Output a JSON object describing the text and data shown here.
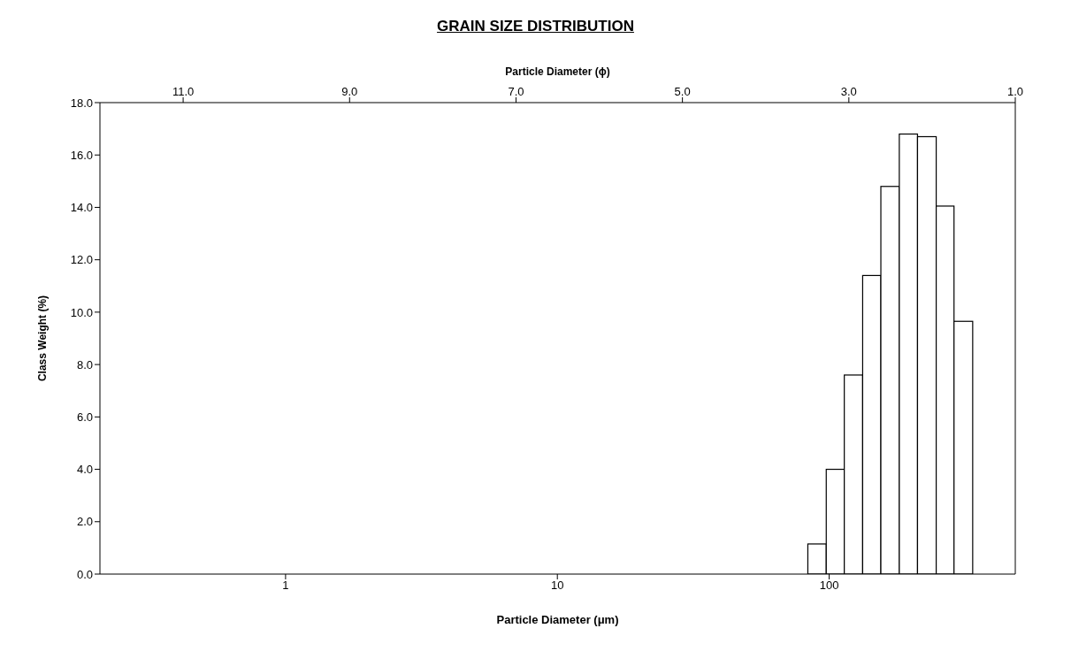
{
  "chart_data": {
    "type": "histogram",
    "title": "GRAIN SIZE DISTRIBUTION",
    "xlabel": "Particle Diameter (μm)",
    "x2label": "Particle Diameter (ϕ)",
    "ylabel": "Class Weight (%)",
    "bins": [
      83,
      97,
      113,
      132,
      154,
      180,
      210,
      246,
      286,
      335
    ],
    "values": [
      1.15,
      4.0,
      7.6,
      11.4,
      14.8,
      16.8,
      16.7,
      14.05,
      9.65
    ],
    "color": "#ffffff",
    "log": "x",
    "xlim": [
      0.2075,
      484
    ],
    "xticks": [
      1,
      10,
      100
    ],
    "x2lim": [
      12,
      1
    ],
    "x2ticks": [
      {
        "value": 11,
        "label": "11.0"
      },
      {
        "value": 9,
        "label": "9.0"
      },
      {
        "value": 7,
        "label": "7.0"
      },
      {
        "value": 5,
        "label": "5.0"
      },
      {
        "value": 3,
        "label": "3.0"
      },
      {
        "value": 1,
        "label": "1.0"
      }
    ],
    "ylim": [
      0,
      18
    ],
    "yticks": [
      {
        "value": 0,
        "label": "0.0"
      },
      {
        "value": 2,
        "label": "2.0"
      },
      {
        "value": 4,
        "label": "4.0"
      },
      {
        "value": 6,
        "label": "6.0"
      },
      {
        "value": 8,
        "label": "8.0"
      },
      {
        "value": 10,
        "label": "10.0"
      },
      {
        "value": 12,
        "label": "12.0"
      },
      {
        "value": 14,
        "label": "14.0"
      },
      {
        "value": 16,
        "label": "16.0"
      },
      {
        "value": 18,
        "label": "18.0"
      }
    ],
    "grid": false,
    "legend": false
  }
}
